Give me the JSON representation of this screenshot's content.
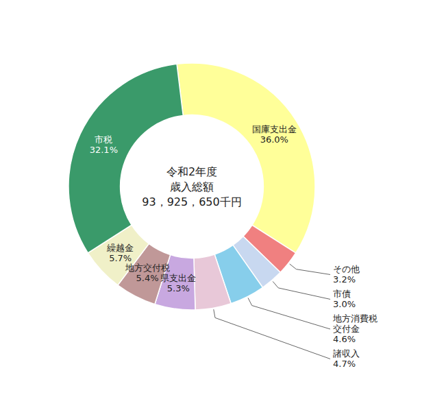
{
  "chart_data": {
    "type": "donut",
    "title": "令和2年度\n歳入総額\n93，925，650千円",
    "categories": [
      "国庫支出金",
      "その他",
      "市債",
      "地方消費税\n交付金",
      "諸収入",
      "県支出金",
      "地方交付税",
      "繰越金",
      "市税"
    ],
    "values": [
      36.0,
      3.2,
      3.0,
      4.6,
      4.7,
      5.3,
      5.4,
      5.7,
      32.1
    ],
    "value_labels": [
      "36.0%",
      "3.2%",
      "3.0%",
      "4.6%",
      "4.7%",
      "5.3%",
      "5.4%",
      "5.7%",
      "32.1%"
    ],
    "data_labels": true,
    "colors": [
      "#FFFF99",
      "#F08080",
      "#C8D8F0",
      "#87CEEB",
      "#E8C8D8",
      "#C8A8E0",
      "#C09898",
      "#F0F0C8",
      "#3A9A6A"
    ]
  }
}
